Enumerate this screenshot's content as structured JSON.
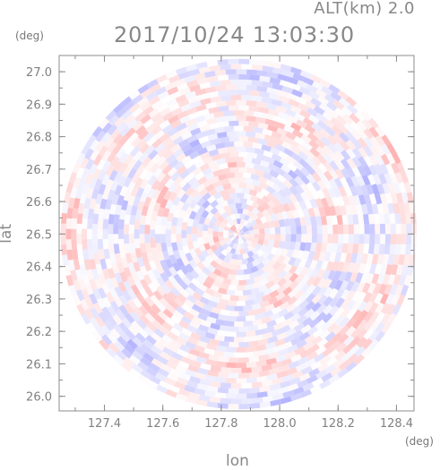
{
  "header": {
    "altitude_text": "ALT(km) 2.0",
    "timestamp": "2017/10/24 13:03:30"
  },
  "chart_data": {
    "type": "heatmap",
    "title": "2017/10/24 13:03:30",
    "subtitle": "ALT(km) 2.0",
    "xlabel": "lon",
    "ylabel": "lat",
    "xunit": "(deg)",
    "yunit": "(deg)",
    "xlim": [
      127.245,
      128.46
    ],
    "ylim": [
      25.955,
      27.05
    ],
    "xticks": [
      127.4,
      127.6,
      127.8,
      128.0,
      128.2,
      128.4
    ],
    "yticks": [
      26.0,
      26.1,
      26.2,
      26.3,
      26.4,
      26.5,
      26.6,
      26.7,
      26.8,
      26.9,
      27.0
    ],
    "xticklabels": [
      "127.4",
      "127.6",
      "127.8",
      "128.0",
      "128.2",
      "128.4"
    ],
    "yticklabels": [
      "26.0",
      "26.1",
      "26.2",
      "26.3",
      "26.4",
      "26.5",
      "26.6",
      "26.7",
      "26.8",
      "26.9",
      "27.0"
    ],
    "radar_center": [
      127.86,
      26.5
    ],
    "radar_range_lon": 0.61,
    "radar_range_lat": 0.54,
    "colormap": {
      "negative": "#b4b4ff",
      "neutral": "#ffffff",
      "positive": "#ffb4b4"
    },
    "grid": false,
    "legend": "none"
  }
}
